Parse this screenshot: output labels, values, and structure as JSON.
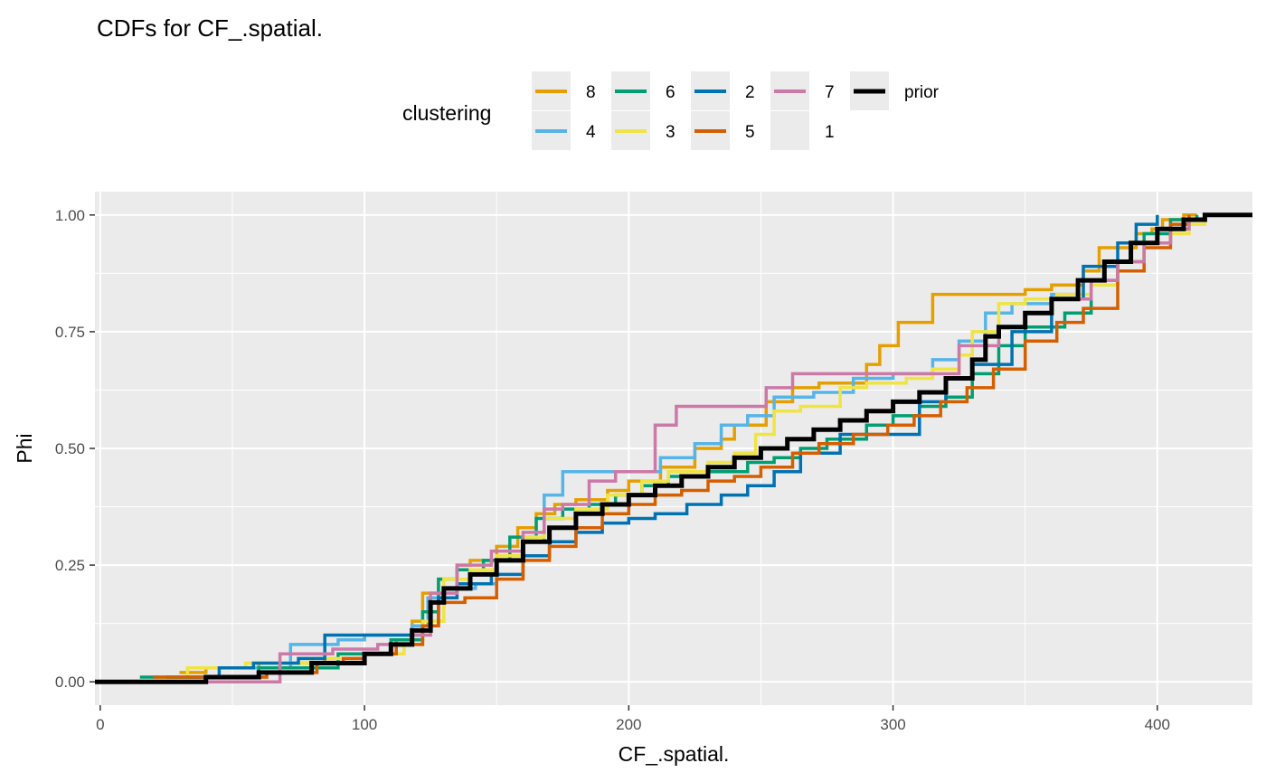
{
  "chart_data": {
    "type": "line",
    "title": "CDFs for  CF_.spatial.",
    "xlabel": "CF_.spatial.",
    "ylabel": "Phi",
    "xlim": [
      -2,
      436
    ],
    "ylim": [
      -0.05,
      1.05
    ],
    "x_ticks": [
      0,
      100,
      200,
      300,
      400
    ],
    "x_tick_labels": [
      "0",
      "100",
      "200",
      "300",
      "400"
    ],
    "y_ticks": [
      0,
      0.25,
      0.5,
      0.75,
      1
    ],
    "y_tick_labels": [
      "0.00",
      "0.25",
      "0.50",
      "0.75",
      "1.00"
    ],
    "grid": true,
    "legend": {
      "title": "clustering",
      "placement": "top",
      "entries": [
        {
          "label": "8",
          "color": "#E69F00"
        },
        {
          "label": "4",
          "color": "#56B4E9"
        },
        {
          "label": "6",
          "color": "#009E73"
        },
        {
          "label": "3",
          "color": "#F0E442"
        },
        {
          "label": "2",
          "color": "#0072B2"
        },
        {
          "label": "5",
          "color": "#D55E00"
        },
        {
          "label": "7",
          "color": "#CC79A7"
        },
        {
          "label": "1",
          "color": null
        },
        {
          "label": "prior",
          "color": "#000000"
        }
      ]
    },
    "series": [
      {
        "name": "8",
        "color": "#E69F00",
        "x": [
          30,
          40,
          60,
          85,
          100,
          112,
          118,
          122,
          128,
          135,
          140,
          150,
          158,
          165,
          172,
          180,
          192,
          200,
          212,
          225,
          235,
          240,
          252,
          262,
          272,
          290,
          295,
          302,
          305,
          315,
          330,
          340,
          350,
          360,
          372,
          378,
          392,
          398,
          402,
          410,
          415
        ],
        "y": [
          0.02,
          0.03,
          0.04,
          0.05,
          0.06,
          0.09,
          0.13,
          0.19,
          0.22,
          0.25,
          0.26,
          0.29,
          0.33,
          0.36,
          0.38,
          0.39,
          0.41,
          0.43,
          0.46,
          0.5,
          0.52,
          0.55,
          0.6,
          0.63,
          0.64,
          0.68,
          0.72,
          0.77,
          0.77,
          0.83,
          0.83,
          0.83,
          0.84,
          0.85,
          0.88,
          0.93,
          0.96,
          0.97,
          0.99,
          1.0,
          1.0
        ]
      },
      {
        "name": "4",
        "color": "#56B4E9",
        "x": [
          50,
          72,
          90,
          100,
          118,
          124,
          130,
          142,
          150,
          160,
          168,
          175,
          190,
          202,
          212,
          225,
          235,
          245,
          255,
          270,
          285,
          300,
          315,
          325,
          335,
          345,
          360,
          370,
          385,
          395,
          405,
          412
        ],
        "y": [
          0.03,
          0.08,
          0.09,
          0.1,
          0.12,
          0.18,
          0.2,
          0.21,
          0.26,
          0.3,
          0.4,
          0.45,
          0.45,
          0.45,
          0.48,
          0.51,
          0.55,
          0.57,
          0.61,
          0.62,
          0.65,
          0.66,
          0.69,
          0.73,
          0.79,
          0.81,
          0.83,
          0.86,
          0.9,
          0.94,
          0.97,
          1.0
        ]
      },
      {
        "name": "6",
        "color": "#009E73",
        "x": [
          15,
          60,
          90,
          110,
          122,
          128,
          135,
          145,
          155,
          165,
          175,
          185,
          195,
          205,
          215,
          230,
          245,
          255,
          265,
          275,
          290,
          300,
          310,
          320,
          330,
          340,
          350,
          365,
          375,
          385,
          395,
          405,
          415
        ],
        "y": [
          0.01,
          0.03,
          0.06,
          0.09,
          0.15,
          0.22,
          0.24,
          0.26,
          0.31,
          0.35,
          0.37,
          0.38,
          0.4,
          0.42,
          0.44,
          0.45,
          0.47,
          0.48,
          0.5,
          0.52,
          0.55,
          0.57,
          0.59,
          0.61,
          0.66,
          0.72,
          0.76,
          0.79,
          0.85,
          0.9,
          0.96,
          0.99,
          1.0
        ]
      },
      {
        "name": "3",
        "color": "#F0E442",
        "x": [
          22,
          33,
          55,
          80,
          100,
          115,
          122,
          130,
          140,
          150,
          160,
          168,
          180,
          192,
          205,
          215,
          230,
          240,
          248,
          255,
          265,
          280,
          290,
          305,
          315,
          325,
          330,
          340,
          350,
          362,
          375,
          385,
          395,
          405,
          412,
          418
        ],
        "y": [
          0.01,
          0.03,
          0.04,
          0.05,
          0.06,
          0.08,
          0.13,
          0.22,
          0.24,
          0.27,
          0.31,
          0.35,
          0.37,
          0.4,
          0.43,
          0.45,
          0.47,
          0.49,
          0.53,
          0.58,
          0.59,
          0.63,
          0.64,
          0.65,
          0.67,
          0.7,
          0.75,
          0.81,
          0.82,
          0.83,
          0.85,
          0.9,
          0.94,
          0.96,
          0.98,
          1.0
        ]
      },
      {
        "name": "2",
        "color": "#0072B2",
        "x": [
          25,
          45,
          58,
          75,
          85,
          98,
          108,
          115,
          122,
          128,
          135,
          148,
          160,
          170,
          180,
          190,
          200,
          210,
          222,
          235,
          245,
          255,
          265,
          280,
          295,
          310,
          320,
          330,
          345,
          360,
          372,
          385,
          392,
          400
        ],
        "y": [
          0.01,
          0.03,
          0.04,
          0.05,
          0.1,
          0.1,
          0.1,
          0.1,
          0.12,
          0.18,
          0.21,
          0.23,
          0.27,
          0.3,
          0.32,
          0.34,
          0.35,
          0.36,
          0.38,
          0.4,
          0.42,
          0.45,
          0.49,
          0.53,
          0.53,
          0.6,
          0.65,
          0.68,
          0.75,
          0.82,
          0.89,
          0.94,
          0.98,
          1.0
        ]
      },
      {
        "name": "5",
        "color": "#D55E00",
        "x": [
          20,
          63,
          82,
          92,
          100,
          112,
          122,
          128,
          138,
          150,
          160,
          170,
          180,
          190,
          200,
          210,
          220,
          230,
          240,
          250,
          262,
          272,
          285,
          298,
          308,
          318,
          328,
          338,
          350,
          362,
          372,
          385,
          395,
          405,
          412
        ],
        "y": [
          0.01,
          0.02,
          0.04,
          0.05,
          0.06,
          0.08,
          0.12,
          0.17,
          0.18,
          0.22,
          0.26,
          0.29,
          0.33,
          0.36,
          0.38,
          0.4,
          0.41,
          0.43,
          0.44,
          0.46,
          0.49,
          0.51,
          0.53,
          0.55,
          0.57,
          0.6,
          0.63,
          0.67,
          0.73,
          0.77,
          0.8,
          0.88,
          0.93,
          0.98,
          1.0
        ]
      },
      {
        "name": "7",
        "color": "#CC79A7",
        "x": [
          40,
          63,
          68,
          88,
          105,
          118,
          125,
          135,
          148,
          160,
          168,
          175,
          185,
          195,
          210,
          218,
          240,
          252,
          262,
          280,
          310,
          325,
          340,
          350,
          360,
          375,
          385,
          395,
          405,
          412,
          418
        ],
        "y": [
          0.0,
          0.0,
          0.06,
          0.07,
          0.08,
          0.1,
          0.19,
          0.25,
          0.28,
          0.32,
          0.37,
          0.38,
          0.43,
          0.45,
          0.55,
          0.59,
          0.59,
          0.63,
          0.66,
          0.66,
          0.66,
          0.72,
          0.76,
          0.79,
          0.82,
          0.86,
          0.9,
          0.94,
          0.97,
          0.99,
          1.0
        ]
      },
      {
        "name": "prior",
        "color": "#000000",
        "x": [
          -2,
          20,
          40,
          60,
          80,
          100,
          110,
          118,
          125,
          130,
          140,
          150,
          160,
          170,
          180,
          190,
          200,
          210,
          220,
          230,
          240,
          250,
          260,
          270,
          280,
          290,
          300,
          310,
          320,
          330,
          335,
          340,
          350,
          360,
          370,
          380,
          390,
          400,
          410,
          418,
          436
        ],
        "y": [
          0.0,
          0.0,
          0.01,
          0.02,
          0.04,
          0.06,
          0.08,
          0.11,
          0.17,
          0.2,
          0.23,
          0.26,
          0.3,
          0.33,
          0.36,
          0.38,
          0.4,
          0.42,
          0.44,
          0.46,
          0.48,
          0.5,
          0.52,
          0.54,
          0.56,
          0.58,
          0.6,
          0.62,
          0.65,
          0.69,
          0.74,
          0.76,
          0.79,
          0.82,
          0.86,
          0.9,
          0.94,
          0.97,
          0.99,
          1.0,
          1.0
        ]
      }
    ]
  }
}
